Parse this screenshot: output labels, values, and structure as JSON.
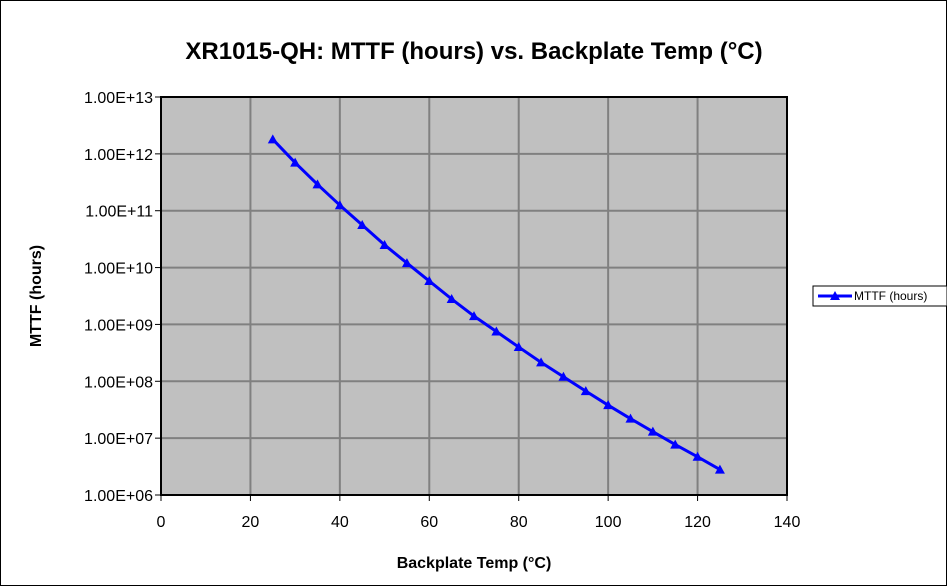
{
  "chart_data": {
    "type": "line",
    "title": "XR1015-QH: MTTF (hours) vs. Backplate Temp (°C)",
    "xlabel": "Backplate Temp (°C)",
    "ylabel": "MTTF (hours)",
    "xlim": [
      0,
      140
    ],
    "ylim": [
      1000000,
      10000000000000
    ],
    "y_scale": "log",
    "x_ticks": [
      0,
      20,
      40,
      60,
      80,
      100,
      120,
      140
    ],
    "x_tick_labels": [
      "0",
      "20",
      "40",
      "60",
      "80",
      "100",
      "120",
      "140"
    ],
    "y_ticks": [
      1000000,
      10000000,
      100000000,
      1000000000,
      10000000000,
      100000000000,
      1000000000000,
      10000000000000
    ],
    "y_tick_labels": [
      "1.00E+06",
      "1.00E+07",
      "1.00E+08",
      "1.00E+09",
      "1.00E+10",
      "1.00E+11",
      "1.00E+12",
      "1.00E+13"
    ],
    "grid": true,
    "legend_position": "right",
    "plot_area_color": "#c0c0c0",
    "grid_color": "#808080",
    "series": [
      {
        "name": "MTTF (hours)",
        "color": "#0000ff",
        "marker": "triangle",
        "x": [
          25,
          30,
          35,
          40,
          45,
          50,
          55,
          60,
          65,
          70,
          75,
          80,
          85,
          90,
          95,
          100,
          105,
          110,
          115,
          120,
          125
        ],
        "values": [
          1800000000000,
          700000000000,
          290000000000,
          125000000000,
          56000000000,
          25000000000,
          12000000000,
          5800000000,
          2800000000,
          1400000000,
          750000000,
          400000000,
          215000000,
          120000000,
          67000000,
          38000000,
          22000000,
          13000000,
          7700000,
          4700000,
          2800000
        ]
      }
    ]
  }
}
